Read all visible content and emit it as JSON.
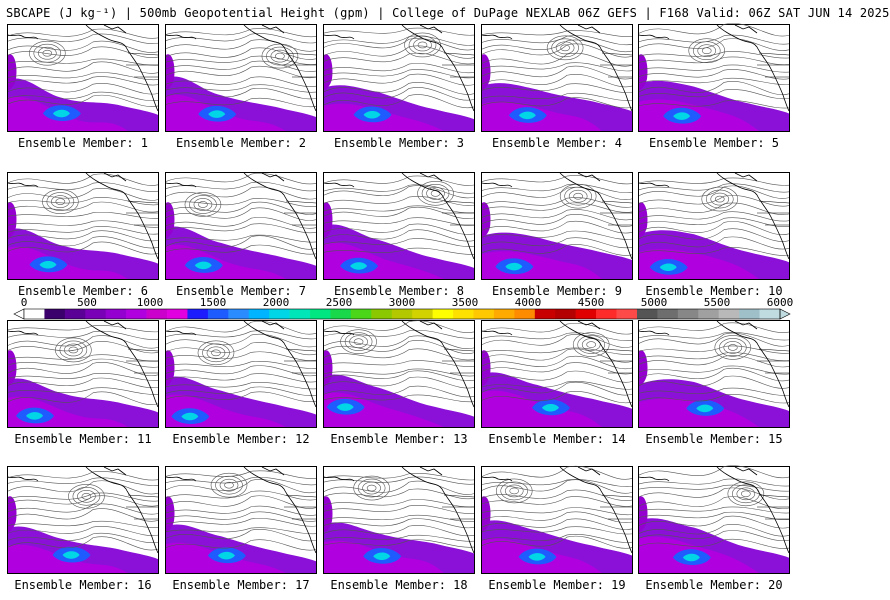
{
  "header": {
    "title": "SBCAPE (J kg⁻¹) | 500mb Geopotential Height (gpm) | College of DuPage NEXLAB 06Z GEFS | F168 Valid: 06Z SAT JUN 14 2025"
  },
  "colorbar": {
    "tick_labels": [
      "0",
      "500",
      "1000",
      "1500",
      "2000",
      "2500",
      "3000",
      "3500",
      "4000",
      "4500",
      "5000",
      "5500",
      "6000"
    ],
    "colors": [
      "#ffffff",
      "#3b006b",
      "#5a0096",
      "#7a00b8",
      "#9300d0",
      "#b000e0",
      "#cc00cc",
      "#e000e0",
      "#1c1cff",
      "#1f5cff",
      "#2b8cff",
      "#00b4ff",
      "#00d6e6",
      "#00e6b8",
      "#00e680",
      "#19d94a",
      "#4cd619",
      "#8cc800",
      "#b4c800",
      "#d2d200",
      "#ffff00",
      "#ffe100",
      "#ffc800",
      "#ffaa00",
      "#ff8c00",
      "#c80000",
      "#b40000",
      "#e00000",
      "#ff2a2a",
      "#ff4a4a",
      "#555555",
      "#6e6e6e",
      "#878787",
      "#a0a0a0",
      "#b9b9b9",
      "#9fc0c8",
      "#c0dce0"
    ]
  },
  "members": [
    {
      "label": "Ensemble Member: 1"
    },
    {
      "label": "Ensemble Member: 2"
    },
    {
      "label": "Ensemble Member: 3"
    },
    {
      "label": "Ensemble Member: 4"
    },
    {
      "label": "Ensemble Member: 5"
    },
    {
      "label": "Ensemble Member: 6"
    },
    {
      "label": "Ensemble Member: 7"
    },
    {
      "label": "Ensemble Member: 8"
    },
    {
      "label": "Ensemble Member: 9"
    },
    {
      "label": "Ensemble Member: 10"
    },
    {
      "label": "Ensemble Member: 11"
    },
    {
      "label": "Ensemble Member: 12"
    },
    {
      "label": "Ensemble Member: 13"
    },
    {
      "label": "Ensemble Member: 14"
    },
    {
      "label": "Ensemble Member: 15"
    },
    {
      "label": "Ensemble Member: 16"
    },
    {
      "label": "Ensemble Member: 17"
    },
    {
      "label": "Ensemble Member: 18"
    },
    {
      "label": "Ensemble Member: 19"
    },
    {
      "label": "Ensemble Member: 20"
    }
  ]
}
